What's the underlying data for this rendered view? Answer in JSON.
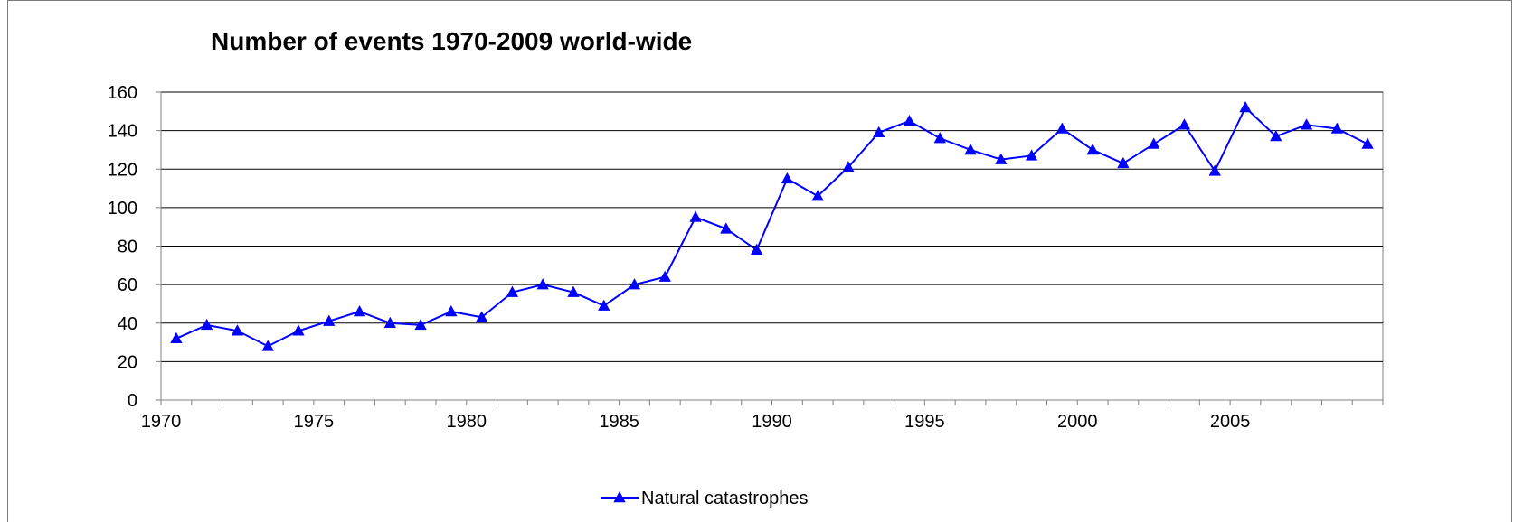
{
  "chart_data": {
    "type": "line",
    "title": "Number of events 1970-2009 world-wide",
    "xlabel": "",
    "ylabel": "",
    "xlim": [
      1970,
      2009
    ],
    "ylim": [
      0,
      160
    ],
    "y_ticks": [
      0,
      20,
      40,
      60,
      80,
      100,
      120,
      140,
      160
    ],
    "x_ticks": [
      1970,
      1975,
      1980,
      1985,
      1990,
      1995,
      2000,
      2005
    ],
    "grid": "horizontal",
    "legend_position": "bottom",
    "series": [
      {
        "name": "Natural catastrophes",
        "color": "#0000ff",
        "marker": "triangle",
        "x": [
          1970,
          1971,
          1972,
          1973,
          1974,
          1975,
          1976,
          1977,
          1978,
          1979,
          1980,
          1981,
          1982,
          1983,
          1984,
          1985,
          1986,
          1987,
          1988,
          1989,
          1990,
          1991,
          1992,
          1993,
          1994,
          1995,
          1996,
          1997,
          1998,
          1999,
          2000,
          2001,
          2002,
          2003,
          2004,
          2005,
          2006,
          2007,
          2008,
          2009
        ],
        "values": [
          32,
          39,
          36,
          28,
          36,
          41,
          46,
          40,
          39,
          46,
          43,
          56,
          60,
          56,
          49,
          60,
          64,
          95,
          89,
          78,
          115,
          106,
          121,
          139,
          145,
          136,
          130,
          125,
          127,
          141,
          130,
          123,
          133,
          143,
          119,
          152,
          137,
          143,
          141,
          133
        ]
      }
    ]
  }
}
